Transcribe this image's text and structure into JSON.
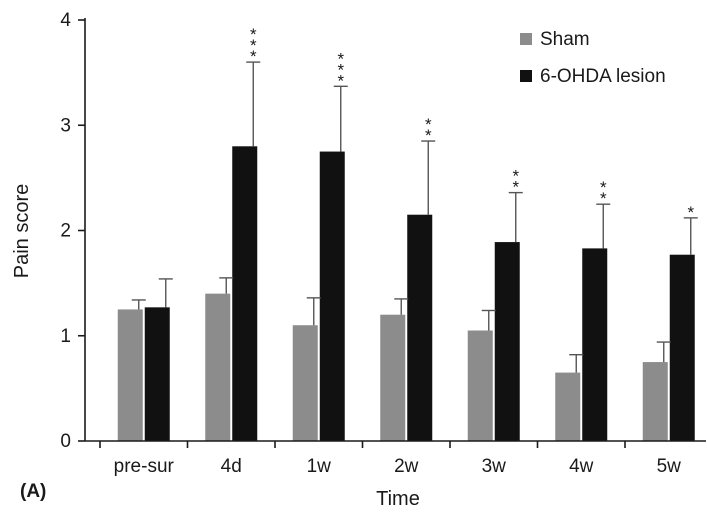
{
  "chart_data": {
    "type": "bar",
    "ylabel": "Pain score",
    "xlabel": "Time",
    "panel_label": "(A)",
    "ylim": [
      0,
      4
    ],
    "yticks": [
      "0",
      "1",
      "2",
      "3",
      "4"
    ],
    "grid": false,
    "legend_position": "top-right",
    "categories": [
      "pre-sur",
      "4d",
      "1w",
      "2w",
      "3w",
      "4w",
      "5w"
    ],
    "series": [
      {
        "name": "Sham",
        "color": "#8c8c8c",
        "values": [
          1.25,
          1.4,
          1.1,
          1.2,
          1.05,
          0.65,
          0.75
        ],
        "errors": [
          0.09,
          0.15,
          0.26,
          0.15,
          0.19,
          0.17,
          0.19
        ]
      },
      {
        "name": "6-OHDA lesion",
        "color": "#111111",
        "values": [
          1.27,
          2.8,
          2.75,
          2.15,
          1.89,
          1.83,
          1.77
        ],
        "errors": [
          0.27,
          0.8,
          0.62,
          0.7,
          0.47,
          0.42,
          0.35
        ]
      }
    ],
    "significance": [
      "",
      "***",
      "***",
      "**",
      "**",
      "**",
      "*"
    ]
  }
}
